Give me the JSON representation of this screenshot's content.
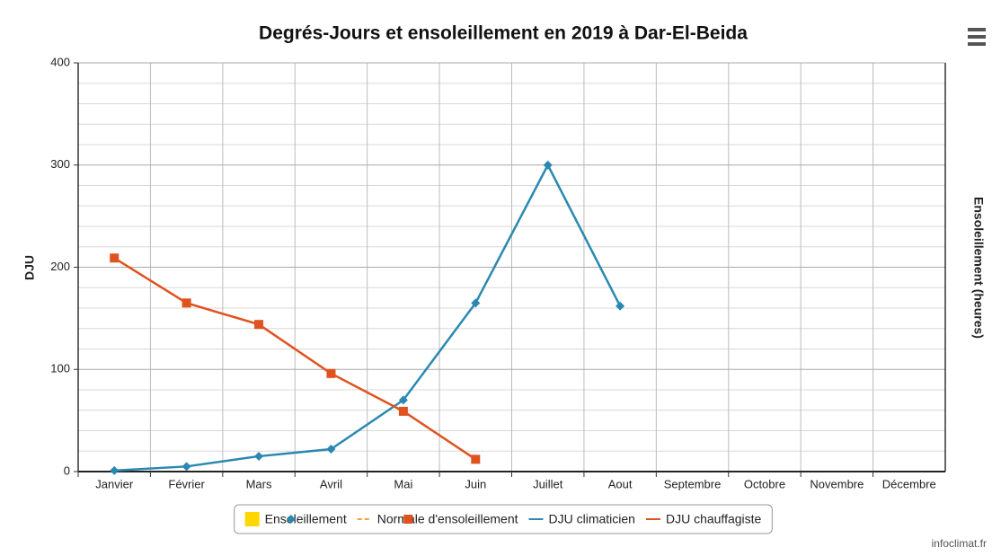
{
  "chart_data": {
    "type": "line",
    "title": "Degrés-Jours et ensoleillement en 2019 à Dar-El-Beida",
    "y_label": "DJU",
    "y2_label": "Ensoleillement (heures)",
    "credit": "infoclimat.fr",
    "categories": [
      "Janvier",
      "Février",
      "Mars",
      "Avril",
      "Mai",
      "Juin",
      "Juillet",
      "Aout",
      "Septembre",
      "Octobre",
      "Novembre",
      "Décembre"
    ],
    "series": [
      {
        "name": "Ensoleillement",
        "color": "#ffd700",
        "legend_symbol": "box",
        "values": [
          null,
          null,
          null,
          null,
          null,
          null,
          null,
          null,
          null,
          null,
          null,
          null
        ]
      },
      {
        "name": "Normale d'ensoleillement",
        "color": "#f5a030",
        "legend_symbol": "dash",
        "values": [
          null,
          null,
          null,
          null,
          null,
          null,
          null,
          null,
          null,
          null,
          null,
          null
        ]
      },
      {
        "name": "DJU climaticien",
        "color": "#2b88b0",
        "marker": "diamond",
        "values": [
          1,
          5,
          15,
          22,
          70,
          165,
          300,
          162,
          null,
          null,
          null,
          null
        ]
      },
      {
        "name": "DJU chauffagiste",
        "color": "#e0521e",
        "marker": "square",
        "values": [
          209,
          165,
          144,
          96,
          59,
          12,
          null,
          null,
          null,
          null,
          null,
          null
        ]
      }
    ],
    "ylim": [
      0,
      400
    ],
    "yticks": [
      0,
      100,
      200,
      300,
      400
    ],
    "yminorticks": [
      20,
      40,
      60,
      80,
      120,
      140,
      160,
      180,
      220,
      240,
      260,
      280,
      320,
      340,
      360,
      380
    ],
    "grid": true
  }
}
